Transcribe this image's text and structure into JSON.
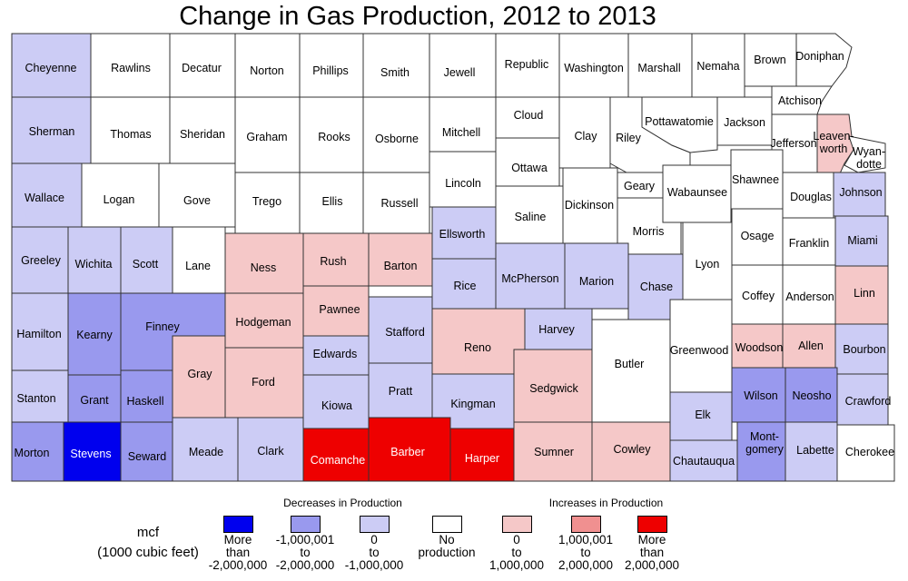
{
  "title": "Change in Gas Production, 2012 to 2013",
  "colors": {
    "dec_large": "#0000ee",
    "dec_mid": "#9999ee",
    "dec_small": "#ccccf5",
    "none": "#ffffff",
    "inc_small": "#f5c8c8",
    "inc_mid": "#f09090",
    "inc_large": "#ee0000"
  },
  "legend": {
    "unit_line1": "mcf",
    "unit_line2": "(1000 cubic feet)",
    "decreases_heading": "Decreases in Production",
    "increases_heading": "Increases in Production",
    "items": [
      {
        "cls": "dec_large",
        "line1": "More",
        "line2": "than",
        "line3": "-2,000,000"
      },
      {
        "cls": "dec_mid",
        "line1": "-1,000,001",
        "line2": "to",
        "line3": "-2,000,000"
      },
      {
        "cls": "dec_small",
        "line1": "0",
        "line2": "to",
        "line3": "-1,000,000"
      },
      {
        "cls": "none",
        "line1": "No",
        "line2": "production",
        "line3": ""
      },
      {
        "cls": "inc_small",
        "line1": "0",
        "line2": "to",
        "line3": "1,000,000"
      },
      {
        "cls": "inc_mid",
        "line1": "1,000,001",
        "line2": "to",
        "line3": "2,000,000"
      },
      {
        "cls": "inc_large",
        "line1": "More",
        "line2": "than",
        "line3": "2,000,000"
      }
    ]
  },
  "counties": [
    {
      "name": "Cheyenne",
      "cls": "dec_small"
    },
    {
      "name": "Rawlins",
      "cls": "none"
    },
    {
      "name": "Decatur",
      "cls": "none"
    },
    {
      "name": "Norton",
      "cls": "none"
    },
    {
      "name": "Phillips",
      "cls": "none"
    },
    {
      "name": "Smith",
      "cls": "none"
    },
    {
      "name": "Jewell",
      "cls": "none"
    },
    {
      "name": "Republic",
      "cls": "none"
    },
    {
      "name": "Washington",
      "cls": "none"
    },
    {
      "name": "Marshall",
      "cls": "none"
    },
    {
      "name": "Nemaha",
      "cls": "none"
    },
    {
      "name": "Brown",
      "cls": "none"
    },
    {
      "name": "Doniphan",
      "cls": "none"
    },
    {
      "name": "Sherman",
      "cls": "dec_small"
    },
    {
      "name": "Thomas",
      "cls": "none"
    },
    {
      "name": "Sheridan",
      "cls": "none"
    },
    {
      "name": "Graham",
      "cls": "none"
    },
    {
      "name": "Rooks",
      "cls": "none"
    },
    {
      "name": "Osborne",
      "cls": "none"
    },
    {
      "name": "Mitchell",
      "cls": "none"
    },
    {
      "name": "Cloud",
      "cls": "none"
    },
    {
      "name": "Clay",
      "cls": "none"
    },
    {
      "name": "Riley",
      "cls": "none"
    },
    {
      "name": "Pottawatomie",
      "cls": "none"
    },
    {
      "name": "Jackson",
      "cls": "none"
    },
    {
      "name": "Atchison",
      "cls": "none"
    },
    {
      "name": "Jefferson",
      "cls": "none"
    },
    {
      "name": "Leaven-worth",
      "lines": [
        "Leaven-",
        "worth"
      ],
      "cls": "inc_small"
    },
    {
      "name": "Wyan-dotte",
      "lines": [
        "Wyan-",
        "dotte"
      ],
      "cls": "none"
    },
    {
      "name": "Wallace",
      "cls": "dec_small"
    },
    {
      "name": "Logan",
      "cls": "none"
    },
    {
      "name": "Gove",
      "cls": "none"
    },
    {
      "name": "Trego",
      "cls": "none"
    },
    {
      "name": "Ellis",
      "cls": "none"
    },
    {
      "name": "Russell",
      "cls": "none"
    },
    {
      "name": "Lincoln",
      "cls": "none"
    },
    {
      "name": "Ottawa",
      "cls": "none"
    },
    {
      "name": "Saline",
      "cls": "none"
    },
    {
      "name": "Dickinson",
      "cls": "none"
    },
    {
      "name": "Geary",
      "cls": "none"
    },
    {
      "name": "Morris",
      "cls": "none"
    },
    {
      "name": "Wabaunsee",
      "cls": "none"
    },
    {
      "name": "Shawnee",
      "cls": "none"
    },
    {
      "name": "Douglas",
      "cls": "none"
    },
    {
      "name": "Johnson",
      "cls": "dec_small"
    },
    {
      "name": "Greeley",
      "cls": "dec_small"
    },
    {
      "name": "Wichita",
      "cls": "dec_small"
    },
    {
      "name": "Scott",
      "cls": "dec_small"
    },
    {
      "name": "Lane",
      "cls": "none"
    },
    {
      "name": "Ness",
      "cls": "inc_small"
    },
    {
      "name": "Rush",
      "cls": "inc_small"
    },
    {
      "name": "Barton",
      "cls": "inc_small"
    },
    {
      "name": "Ellsworth",
      "cls": "dec_small"
    },
    {
      "name": "Rice",
      "cls": "dec_small"
    },
    {
      "name": "McPherson",
      "cls": "dec_small"
    },
    {
      "name": "Marion",
      "cls": "dec_small"
    },
    {
      "name": "Chase",
      "cls": "dec_small"
    },
    {
      "name": "Lyon",
      "cls": "none"
    },
    {
      "name": "Osage",
      "cls": "none"
    },
    {
      "name": "Franklin",
      "cls": "none"
    },
    {
      "name": "Miami",
      "cls": "dec_small"
    },
    {
      "name": "Hamilton",
      "cls": "dec_small"
    },
    {
      "name": "Kearny",
      "cls": "dec_mid"
    },
    {
      "name": "Finney",
      "cls": "dec_mid"
    },
    {
      "name": "Hodgeman",
      "cls": "inc_small"
    },
    {
      "name": "Pawnee",
      "cls": "inc_small"
    },
    {
      "name": "Stafford",
      "cls": "dec_small"
    },
    {
      "name": "Reno",
      "cls": "inc_small"
    },
    {
      "name": "Harvey",
      "cls": "dec_small"
    },
    {
      "name": "Butler",
      "cls": "none"
    },
    {
      "name": "Greenwood",
      "cls": "none"
    },
    {
      "name": "Coffey",
      "cls": "none"
    },
    {
      "name": "Anderson",
      "cls": "none"
    },
    {
      "name": "Linn",
      "cls": "inc_small"
    },
    {
      "name": "Woodson",
      "cls": "inc_small"
    },
    {
      "name": "Allen",
      "cls": "inc_small"
    },
    {
      "name": "Bourbon",
      "cls": "dec_small"
    },
    {
      "name": "Gray",
      "cls": "inc_small"
    },
    {
      "name": "Ford",
      "cls": "inc_small"
    },
    {
      "name": "Edwards",
      "cls": "dec_small"
    },
    {
      "name": "Stanton",
      "cls": "dec_small"
    },
    {
      "name": "Grant",
      "cls": "dec_mid"
    },
    {
      "name": "Haskell",
      "cls": "dec_mid"
    },
    {
      "name": "Kiowa",
      "cls": "dec_small"
    },
    {
      "name": "Pratt",
      "cls": "dec_small"
    },
    {
      "name": "Kingman",
      "cls": "dec_small"
    },
    {
      "name": "Sedgwick",
      "cls": "inc_small"
    },
    {
      "name": "Elk",
      "cls": "dec_small"
    },
    {
      "name": "Wilson",
      "cls": "dec_mid"
    },
    {
      "name": "Neosho",
      "cls": "dec_mid"
    },
    {
      "name": "Crawford",
      "cls": "dec_small"
    },
    {
      "name": "Morton",
      "cls": "dec_mid"
    },
    {
      "name": "Stevens",
      "cls": "dec_large"
    },
    {
      "name": "Seward",
      "cls": "dec_mid"
    },
    {
      "name": "Meade",
      "cls": "dec_small"
    },
    {
      "name": "Clark",
      "cls": "dec_small"
    },
    {
      "name": "Comanche",
      "cls": "inc_large"
    },
    {
      "name": "Barber",
      "cls": "inc_large"
    },
    {
      "name": "Harper",
      "cls": "inc_large"
    },
    {
      "name": "Sumner",
      "cls": "inc_small"
    },
    {
      "name": "Cowley",
      "cls": "inc_small"
    },
    {
      "name": "Chautauqua",
      "cls": "dec_small"
    },
    {
      "name": "Mont-gomery",
      "lines": [
        "Mont-",
        "gomery"
      ],
      "cls": "dec_mid"
    },
    {
      "name": "Labette",
      "cls": "dec_small"
    },
    {
      "name": "Cherokee",
      "cls": "none"
    }
  ]
}
